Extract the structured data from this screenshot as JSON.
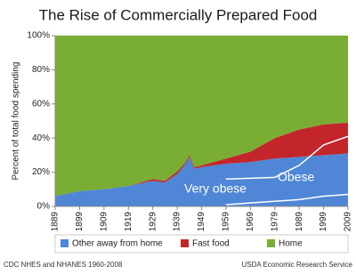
{
  "chart_data": {
    "type": "stacked-area",
    "title": "The Rise of Commercially Prepared Food",
    "ylabel": "Percent of total food spending",
    "x": [
      1889,
      1899,
      1909,
      1919,
      1929,
      1934,
      1939,
      1942,
      1944,
      1946,
      1949,
      1959,
      1969,
      1979,
      1989,
      1999,
      2009
    ],
    "series": [
      {
        "name": "Other away from home",
        "color": "#4f86d6",
        "values": [
          6,
          9,
          10,
          12,
          15,
          14,
          19,
          24,
          29,
          22,
          23,
          25,
          26,
          28,
          29,
          30,
          31
        ]
      },
      {
        "name": "Fast food",
        "color": "#c3262a",
        "values": [
          0,
          0,
          0,
          0,
          1,
          1,
          1.5,
          1,
          1,
          1,
          1,
          3,
          6,
          12,
          16,
          18,
          18
        ]
      },
      {
        "name": "Home",
        "color": "#7aad34",
        "values": [
          94,
          91,
          90,
          88,
          84,
          85,
          79.5,
          75,
          70,
          77,
          76,
          72,
          68,
          60,
          55,
          52,
          51
        ]
      }
    ],
    "lines": [
      {
        "name": "Obese",
        "color": "#ffffff",
        "values": [
          null,
          null,
          null,
          null,
          null,
          null,
          null,
          null,
          null,
          null,
          null,
          16,
          16.5,
          17,
          24,
          36,
          41
        ]
      },
      {
        "name": "Very obese",
        "color": "#ffffff",
        "values": [
          null,
          null,
          null,
          null,
          null,
          null,
          null,
          null,
          null,
          null,
          null,
          1,
          2,
          3,
          4,
          6,
          7
        ]
      }
    ],
    "xlim": [
      1889,
      2009
    ],
    "xticks": [
      1889,
      1899,
      1909,
      1919,
      1929,
      1939,
      1949,
      1959,
      1969,
      1979,
      1989,
      1999,
      2009
    ],
    "ylim": [
      0,
      100
    ],
    "yticks": [
      {
        "value": 0,
        "label": "0%"
      },
      {
        "value": 20,
        "label": "20%"
      },
      {
        "value": 40,
        "label": "40%"
      },
      {
        "value": 60,
        "label": "60%"
      },
      {
        "value": 80,
        "label": "80%"
      },
      {
        "value": 100,
        "label": "100%"
      }
    ],
    "footnotes": [
      "CDC NHES and NHANES 1960-2008",
      "USDA Economic Research Service"
    ]
  }
}
